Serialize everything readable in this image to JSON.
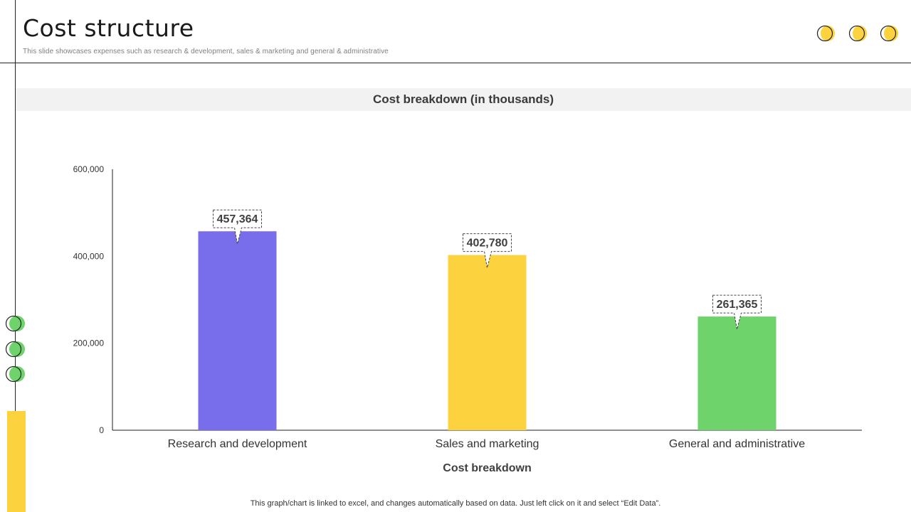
{
  "slide": {
    "title": "Cost structure",
    "subtitle": "This slide showcases expenses such as research & development, sales & marketing and general & administrative",
    "footer": "This graph/chart is linked to excel,  and changes automatically based on data. Just left click on it and select “Edit Data”."
  },
  "colors": {
    "accent_yellow": "#fcd33f",
    "accent_green": "#6dd36a",
    "bar_purple": "#786deb",
    "line_dark": "#222222"
  },
  "chart_data": {
    "type": "bar",
    "title": "Cost breakdown (in thousands)",
    "xlabel": "Cost breakdown",
    "ylabel": "",
    "categories": [
      "Research and development",
      "Sales and marketing",
      "General and administrative"
    ],
    "values": [
      457364,
      402780,
      261365
    ],
    "value_labels": [
      "457,364",
      "402,780",
      "261,365"
    ],
    "bar_colors": [
      "#786deb",
      "#fcd33f",
      "#6dd36a"
    ],
    "ylim": [
      0,
      600000
    ],
    "yticks": [
      0,
      200000,
      400000,
      600000
    ],
    "ytick_labels": [
      "0",
      "200,000",
      "400,000",
      "600,000"
    ],
    "grid": false,
    "legend": "none"
  }
}
